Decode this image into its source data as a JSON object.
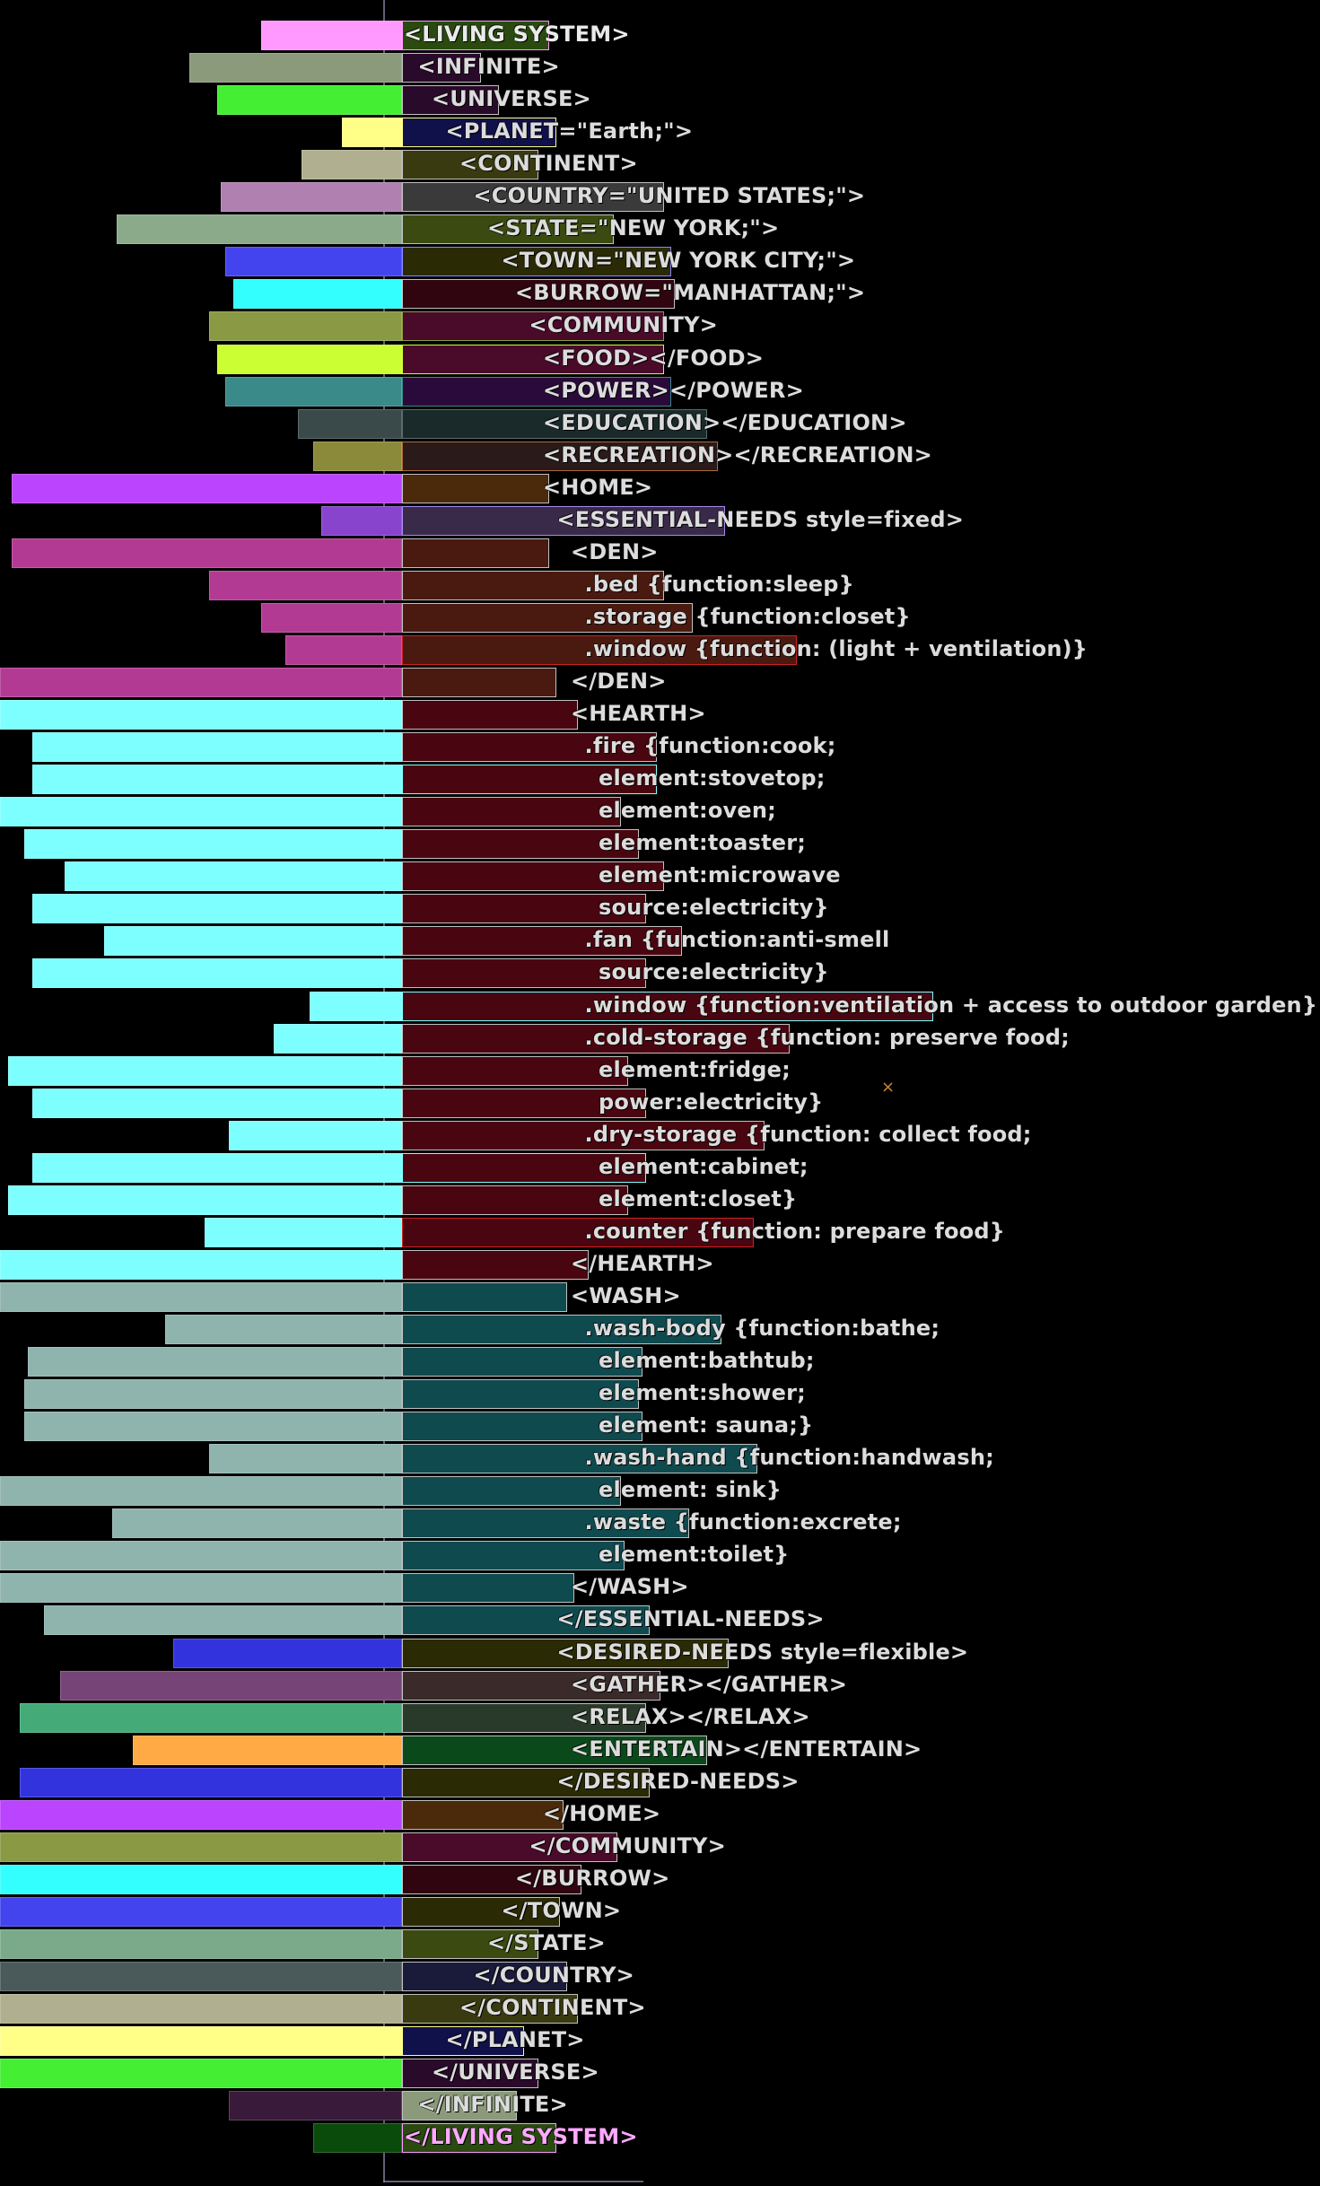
{
  "colors": {
    "background": "#000000",
    "axis": "#8a8aa8",
    "den": "#b33a93",
    "hearth": "#7effff",
    "wash": "#8fb3ad",
    "hearth_right_bg": "#4a0610",
    "wash_right_bg": "#0f4a4f",
    "den_right_bg": "#4a2010"
  },
  "marker": "×",
  "rows": [
    {
      "label": "<LIVING SYSTEM>",
      "left_color": "#ff99ff",
      "right_color": "#2a4a10",
      "border": "#ff99ff",
      "left_len": 0.35,
      "right_len": 0.41,
      "indent": 0,
      "text_color": "#eaeaea"
    },
    {
      "label": "<INFINITE>",
      "left_color": "#8a9a7a",
      "right_color": "#2a0a2a",
      "border": "#c0c0c0",
      "left_len": 0.53,
      "right_len": 0.22,
      "indent": 1
    },
    {
      "label": "<UNIVERSE>",
      "left_color": "#44ee33",
      "right_color": "#2a0a2a",
      "border": "#c0c0c0",
      "left_len": 0.46,
      "right_len": 0.27,
      "indent": 2
    },
    {
      "label": "<PLANET=\"Earth;\">",
      "left_color": "#ffff88",
      "right_color": "#10104a",
      "border": "#ffff88",
      "left_len": 0.15,
      "right_len": 0.43,
      "indent": 3
    },
    {
      "label": "<CONTINENT>",
      "left_color": "#b0b090",
      "right_color": "#3a3a10",
      "border": "#c0c0c0",
      "left_len": 0.25,
      "right_len": 0.38,
      "indent": 4
    },
    {
      "label": "<COUNTRY=\"UNITED STATES;\">",
      "left_color": "#b080b0",
      "right_color": "#3a3a3a",
      "border": "#c0c0c0",
      "left_len": 0.45,
      "right_len": 0.73,
      "indent": 5
    },
    {
      "label": "<STATE=\"NEW YORK;\">",
      "left_color": "#8aaa8a",
      "right_color": "#3a4a10",
      "border": "#c0c0c0",
      "left_len": 0.71,
      "right_len": 0.59,
      "indent": 6
    },
    {
      "label": "<TOWN=\"NEW YORK CITY;\">",
      "left_color": "#4444ee",
      "right_color": "#2a2a05",
      "border": "#8888ff",
      "left_len": 0.44,
      "right_len": 0.75,
      "indent": 7
    },
    {
      "label": "<BURROW=\"MANHATTAN;\">",
      "left_color": "#33ffff",
      "right_color": "#300510",
      "border": "#c0c0c0",
      "left_len": 0.42,
      "right_len": 0.76,
      "indent": 8
    },
    {
      "label": "<COMMUNITY>",
      "left_color": "#8a9a44",
      "right_color": "#4a0a2a",
      "border": "#8a9a44",
      "left_len": 0.48,
      "right_len": 0.73,
      "indent": 9
    },
    {
      "label": "<FOOD></FOOD>",
      "left_color": "#ccff33",
      "right_color": "#4a0a2a",
      "border": "#ccff33",
      "left_len": 0.46,
      "right_len": 0.73,
      "indent": 10
    },
    {
      "label": "<POWER></POWER>",
      "left_color": "#3a8a8a",
      "right_color": "#2a0a3a",
      "border": "#3a8a8a",
      "left_len": 0.44,
      "right_len": 0.75,
      "indent": 10
    },
    {
      "label": "<EDUCATION></EDUCATION>",
      "left_color": "#3a4a4a",
      "right_color": "#1a2a2a",
      "border": "#5a6a6a",
      "left_len": 0.26,
      "right_len": 0.85,
      "indent": 10
    },
    {
      "label": "<RECREATION></RECREATION>",
      "left_color": "#8a8a3a",
      "right_color": "#2a1a1a",
      "border": "#aa6a3a",
      "left_len": 0.22,
      "right_len": 0.88,
      "indent": 10
    },
    {
      "label": "<HOME>",
      "left_color": "#bb44ff",
      "right_color": "#4a2a0a",
      "border": "#c0c0c0",
      "left_len": 0.97,
      "right_len": 0.41,
      "indent": 10
    },
    {
      "label": "<ESSENTIAL-NEEDS style=fixed>",
      "left_color": "#8844cc",
      "right_color": "#3a2a4a",
      "border": "#aa88ee",
      "left_len": 0.2,
      "right_len": 0.9,
      "indent": 11
    },
    {
      "label": "<DEN>",
      "left_color": "#b33a93",
      "right_color": "#4a1a10",
      "border": "#c0c0c0",
      "left_len": 0.97,
      "right_len": 0.41,
      "indent": 12
    },
    {
      "label": ".bed {function:sleep}",
      "left_color": "#b33a93",
      "right_color": "#4a1a10",
      "border": "#c0c0c0",
      "left_len": 0.48,
      "right_len": 0.73,
      "indent": 13
    },
    {
      "label": ".storage {function:closet}",
      "left_color": "#b33a93",
      "right_color": "#4a1a10",
      "border": "#c0c0c0",
      "left_len": 0.35,
      "right_len": 0.81,
      "indent": 13
    },
    {
      "label": ".window {function: (light + ventilation)}",
      "left_color": "#b33a93",
      "right_color": "#4a1a10",
      "border": "#cc2222",
      "left_len": 0.29,
      "right_len": 1.1,
      "indent": 13
    },
    {
      "label": "</DEN>",
      "left_color": "#b33a93",
      "right_color": "#4a1a10",
      "border": "#c0c0c0",
      "left_len": 1.0,
      "right_len": 0.43,
      "indent": 12
    },
    {
      "label": "<HEARTH>",
      "left_color": "#7effff",
      "right_color": "#4a0610",
      "border": "#c0c0c0",
      "left_len": 1.0,
      "right_len": 0.49,
      "indent": 12
    },
    {
      "label": ".fire {function:cook;",
      "left_color": "#7effff",
      "right_color": "#4a0610",
      "border": "#c0c0c0",
      "left_len": 0.92,
      "right_len": 0.71,
      "indent": 13
    },
    {
      "label": "element:stovetop;",
      "left_color": "#7effff",
      "right_color": "#4a0610",
      "border": "#7effff",
      "left_len": 0.92,
      "right_len": 0.71,
      "indent": 14
    },
    {
      "label": "element:oven;",
      "left_color": "#7effff",
      "right_color": "#4a0610",
      "border": "#c0c0c0",
      "left_len": 1.0,
      "right_len": 0.61,
      "indent": 14
    },
    {
      "label": "element:toaster;",
      "left_color": "#7effff",
      "right_color": "#4a0610",
      "border": "#c0c0c0",
      "left_len": 0.94,
      "right_len": 0.66,
      "indent": 14
    },
    {
      "label": "element:microwave",
      "left_color": "#7effff",
      "right_color": "#4a0610",
      "border": "#c0c0c0",
      "left_len": 0.84,
      "right_len": 0.73,
      "indent": 14
    },
    {
      "label": "source:electricity}",
      "left_color": "#7effff",
      "right_color": "#4a0610",
      "border": "#c0c0c0",
      "left_len": 0.92,
      "right_len": 0.68,
      "indent": 14
    },
    {
      "label": ".fan {function:anti-smell",
      "left_color": "#7effff",
      "right_color": "#4a0610",
      "border": "#c0c0c0",
      "left_len": 0.74,
      "right_len": 0.78,
      "indent": 13
    },
    {
      "label": "source:electricity}",
      "left_color": "#7effff",
      "right_color": "#4a0610",
      "border": "#c0c0c0",
      "left_len": 0.92,
      "right_len": 0.68,
      "indent": 14
    },
    {
      "label": ".window {function:ventilation + access to outdoor garden}",
      "left_color": "#7effff",
      "right_color": "#4a0610",
      "border": "#7effff",
      "left_len": 0.23,
      "right_len": 1.48,
      "indent": 13
    },
    {
      "label": ".cold-storage {function: preserve food;",
      "left_color": "#7effff",
      "right_color": "#4a0610",
      "border": "#c0c0c0",
      "left_len": 0.32,
      "right_len": 1.08,
      "indent": 13
    },
    {
      "label": "element:fridge;",
      "left_color": "#7effff",
      "right_color": "#4a0610",
      "border": "#c0c0c0",
      "left_len": 0.98,
      "right_len": 0.63,
      "indent": 14
    },
    {
      "label": "power:electricity}",
      "left_color": "#7effff",
      "right_color": "#4a0610",
      "border": "#c0c0c0",
      "left_len": 0.92,
      "right_len": 0.68,
      "indent": 14
    },
    {
      "label": ".dry-storage {function: collect food;",
      "left_color": "#7effff",
      "right_color": "#4a0610",
      "border": "#c0c0c0",
      "left_len": 0.43,
      "right_len": 1.01,
      "indent": 13
    },
    {
      "label": "element:cabinet;",
      "left_color": "#7effff",
      "right_color": "#4a0610",
      "border": "#7effff",
      "left_len": 0.92,
      "right_len": 0.68,
      "indent": 14
    },
    {
      "label": "element:closet}",
      "left_color": "#7effff",
      "right_color": "#4a0610",
      "border": "#c0c0c0",
      "left_len": 0.98,
      "right_len": 0.63,
      "indent": 14
    },
    {
      "label": ".counter {function: prepare food}",
      "left_color": "#7effff",
      "right_color": "#4a0610",
      "border": "#cc2222",
      "left_len": 0.49,
      "right_len": 0.98,
      "indent": 13
    },
    {
      "label": "</HEARTH>",
      "left_color": "#7effff",
      "right_color": "#4a0610",
      "border": "#c0c0c0",
      "left_len": 1.0,
      "right_len": 0.52,
      "indent": 12
    },
    {
      "label": "<WASH>",
      "left_color": "#8fb3ad",
      "right_color": "#0f4a4f",
      "border": "#c0c0c0",
      "left_len": 1.0,
      "right_len": 0.46,
      "indent": 12
    },
    {
      "label": ".wash-body {function:bathe;",
      "left_color": "#8fb3ad",
      "right_color": "#0f4a4f",
      "border": "#c0c0c0",
      "left_len": 0.59,
      "right_len": 0.89,
      "indent": 13
    },
    {
      "label": "element:bathtub;",
      "left_color": "#8fb3ad",
      "right_color": "#0f4a4f",
      "border": "#c0c0c0",
      "left_len": 0.93,
      "right_len": 0.67,
      "indent": 14
    },
    {
      "label": "element:shower;",
      "left_color": "#8fb3ad",
      "right_color": "#0f4a4f",
      "border": "#c0c0c0",
      "left_len": 0.94,
      "right_len": 0.66,
      "indent": 14
    },
    {
      "label": "element: sauna;}",
      "left_color": "#8fb3ad",
      "right_color": "#0f4a4f",
      "border": "#c0c0c0",
      "left_len": 0.94,
      "right_len": 0.67,
      "indent": 14
    },
    {
      "label": ".wash-hand {function:handwash;",
      "left_color": "#8fb3ad",
      "right_color": "#0f4a4f",
      "border": "#c0c0c0",
      "left_len": 0.48,
      "right_len": 0.99,
      "indent": 13
    },
    {
      "label": "element: sink}",
      "left_color": "#8fb3ad",
      "right_color": "#0f4a4f",
      "border": "#c0c0c0",
      "left_len": 1.0,
      "right_len": 0.61,
      "indent": 14
    },
    {
      "label": ".waste {function:excrete;",
      "left_color": "#8fb3ad",
      "right_color": "#0f4a4f",
      "border": "#c0c0c0",
      "left_len": 0.72,
      "right_len": 0.8,
      "indent": 13
    },
    {
      "label": "element:toilet}",
      "left_color": "#8fb3ad",
      "right_color": "#0f4a4f",
      "border": "#c0c0c0",
      "left_len": 1.0,
      "right_len": 0.62,
      "indent": 14
    },
    {
      "label": "</WASH>",
      "left_color": "#8fb3ad",
      "right_color": "#0f4a4f",
      "border": "#c0c0c0",
      "left_len": 1.0,
      "right_len": 0.48,
      "indent": 12
    },
    {
      "label": "</ESSENTIAL-NEEDS>",
      "left_color": "#8fb3ad",
      "right_color": "#0f4a4f",
      "border": "#c0c0c0",
      "left_len": 0.89,
      "right_len": 0.69,
      "indent": 11
    },
    {
      "label": "<DESIRED-NEEDS style=flexible>",
      "left_color": "#3333dd",
      "right_color": "#2a2a05",
      "border": "#c0c0c0",
      "left_len": 0.57,
      "right_len": 0.91,
      "indent": 11
    },
    {
      "label": "<GATHER></GATHER>",
      "left_color": "#774477",
      "right_color": "#3a2a2a",
      "border": "#c0c0c0",
      "left_len": 0.85,
      "right_len": 0.72,
      "indent": 12
    },
    {
      "label": "<RELAX></RELAX>",
      "left_color": "#44aa77",
      "right_color": "#2a3a2a",
      "border": "#c0c0c0",
      "left_len": 0.95,
      "right_len": 0.68,
      "indent": 12
    },
    {
      "label": "<ENTERTAIN></ENTERTAIN>",
      "left_color": "#ffaa44",
      "right_color": "#0a4a1a",
      "border": "#c0c0c0",
      "left_len": 0.67,
      "right_len": 0.85,
      "indent": 12
    },
    {
      "label": "</DESIRED-NEEDS>",
      "left_color": "#3333dd",
      "right_color": "#2a2a05",
      "border": "#c0c0c0",
      "left_len": 0.95,
      "right_len": 0.69,
      "indent": 11
    },
    {
      "label": "</HOME>",
      "left_color": "#bb44ff",
      "right_color": "#4a2a0a",
      "border": "#c0c0c0",
      "left_len": 1.0,
      "right_len": 0.45,
      "indent": 10
    },
    {
      "label": "</COMMUNITY>",
      "left_color": "#8a9a44",
      "right_color": "#4a0a2a",
      "border": "#c0c0c0",
      "left_len": 1.0,
      "right_len": 0.6,
      "indent": 9
    },
    {
      "label": "</BURROW>",
      "left_color": "#33ffff",
      "right_color": "#300510",
      "border": "#c0c0c0",
      "left_len": 1.0,
      "right_len": 0.5,
      "indent": 8
    },
    {
      "label": "</TOWN>",
      "left_color": "#4444ee",
      "right_color": "#2a2a05",
      "border": "#c0c0c0",
      "left_len": 1.0,
      "right_len": 0.44,
      "indent": 7
    },
    {
      "label": "</STATE>",
      "left_color": "#7aaa8a",
      "right_color": "#3a4a10",
      "border": "#c0c0c0",
      "left_len": 1.0,
      "right_len": 0.38,
      "indent": 6
    },
    {
      "label": "</COUNTRY>",
      "left_color": "#4a5a5a",
      "right_color": "#1a1a3a",
      "border": "#c0c0c0",
      "left_len": 1.0,
      "right_len": 0.46,
      "indent": 5
    },
    {
      "label": "</CONTINENT>",
      "left_color": "#b0b090",
      "right_color": "#3a3a10",
      "border": "#c0c0c0",
      "left_len": 1.0,
      "right_len": 0.49,
      "indent": 4
    },
    {
      "label": "</PLANET>",
      "left_color": "#ffff88",
      "right_color": "#10104a",
      "border": "#ffff88",
      "left_len": 1.0,
      "right_len": 0.34,
      "indent": 3
    },
    {
      "label": "</UNIVERSE>",
      "left_color": "#44ee33",
      "right_color": "#2a0a2a",
      "border": "#c0c0c0",
      "left_len": 1.0,
      "right_len": 0.38,
      "indent": 2
    },
    {
      "label": "</INFINITE>",
      "left_color": "#3a1a3a",
      "right_color": "#8a9a7a",
      "border": "#c0c0c0",
      "left_len": 0.43,
      "right_len": 0.32,
      "indent": 1
    },
    {
      "label": "</LIVING SYSTEM>",
      "left_color": "#0a4a0a",
      "right_color": "#2a4a10",
      "border": "#ff99ff",
      "left_len": 0.22,
      "right_len": 0.43,
      "indent": 0,
      "text_color": "#ffaaff"
    }
  ]
}
